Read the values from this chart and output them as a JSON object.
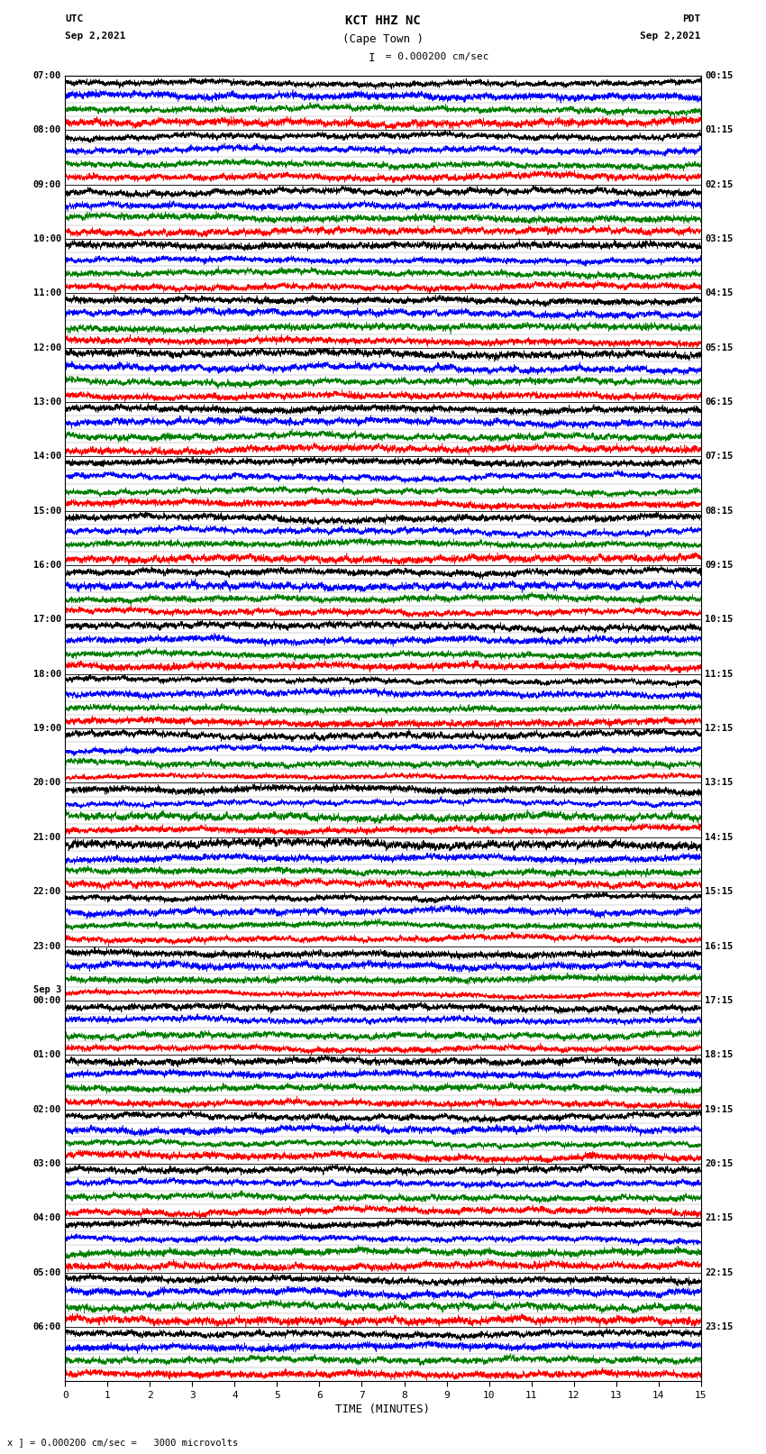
{
  "title_line1": "KCT HHZ NC",
  "title_line2": "(Cape Town )",
  "scale_label": "I = 0.000200 cm/sec",
  "left_label_top": "UTC",
  "left_label_date": "Sep 2,2021",
  "right_label_top": "PDT",
  "right_label_date": "Sep 2,2021",
  "bottom_label": "TIME (MINUTES)",
  "scale_note": "x ] = 0.000200 cm/sec =   3000 microvolts",
  "utc_times": [
    "07:00",
    "08:00",
    "09:00",
    "10:00",
    "11:00",
    "12:00",
    "13:00",
    "14:00",
    "15:00",
    "16:00",
    "17:00",
    "18:00",
    "19:00",
    "20:00",
    "21:00",
    "22:00",
    "23:00",
    "Sep 3\n00:00",
    "01:00",
    "02:00",
    "03:00",
    "04:00",
    "05:00",
    "06:00"
  ],
  "pdt_times": [
    "00:15",
    "01:15",
    "02:15",
    "03:15",
    "04:15",
    "05:15",
    "06:15",
    "07:15",
    "08:15",
    "09:15",
    "10:15",
    "11:15",
    "12:15",
    "13:15",
    "14:15",
    "15:15",
    "16:15",
    "17:15",
    "18:15",
    "19:15",
    "20:15",
    "21:15",
    "22:15",
    "23:15"
  ],
  "n_traces": 24,
  "minutes_per_trace": 15,
  "bg_color": "white",
  "trace_colors": [
    "red",
    "#008000",
    "blue",
    "black"
  ],
  "n_colors": 4,
  "samples_per_trace": 6000,
  "sep3_row": 17
}
